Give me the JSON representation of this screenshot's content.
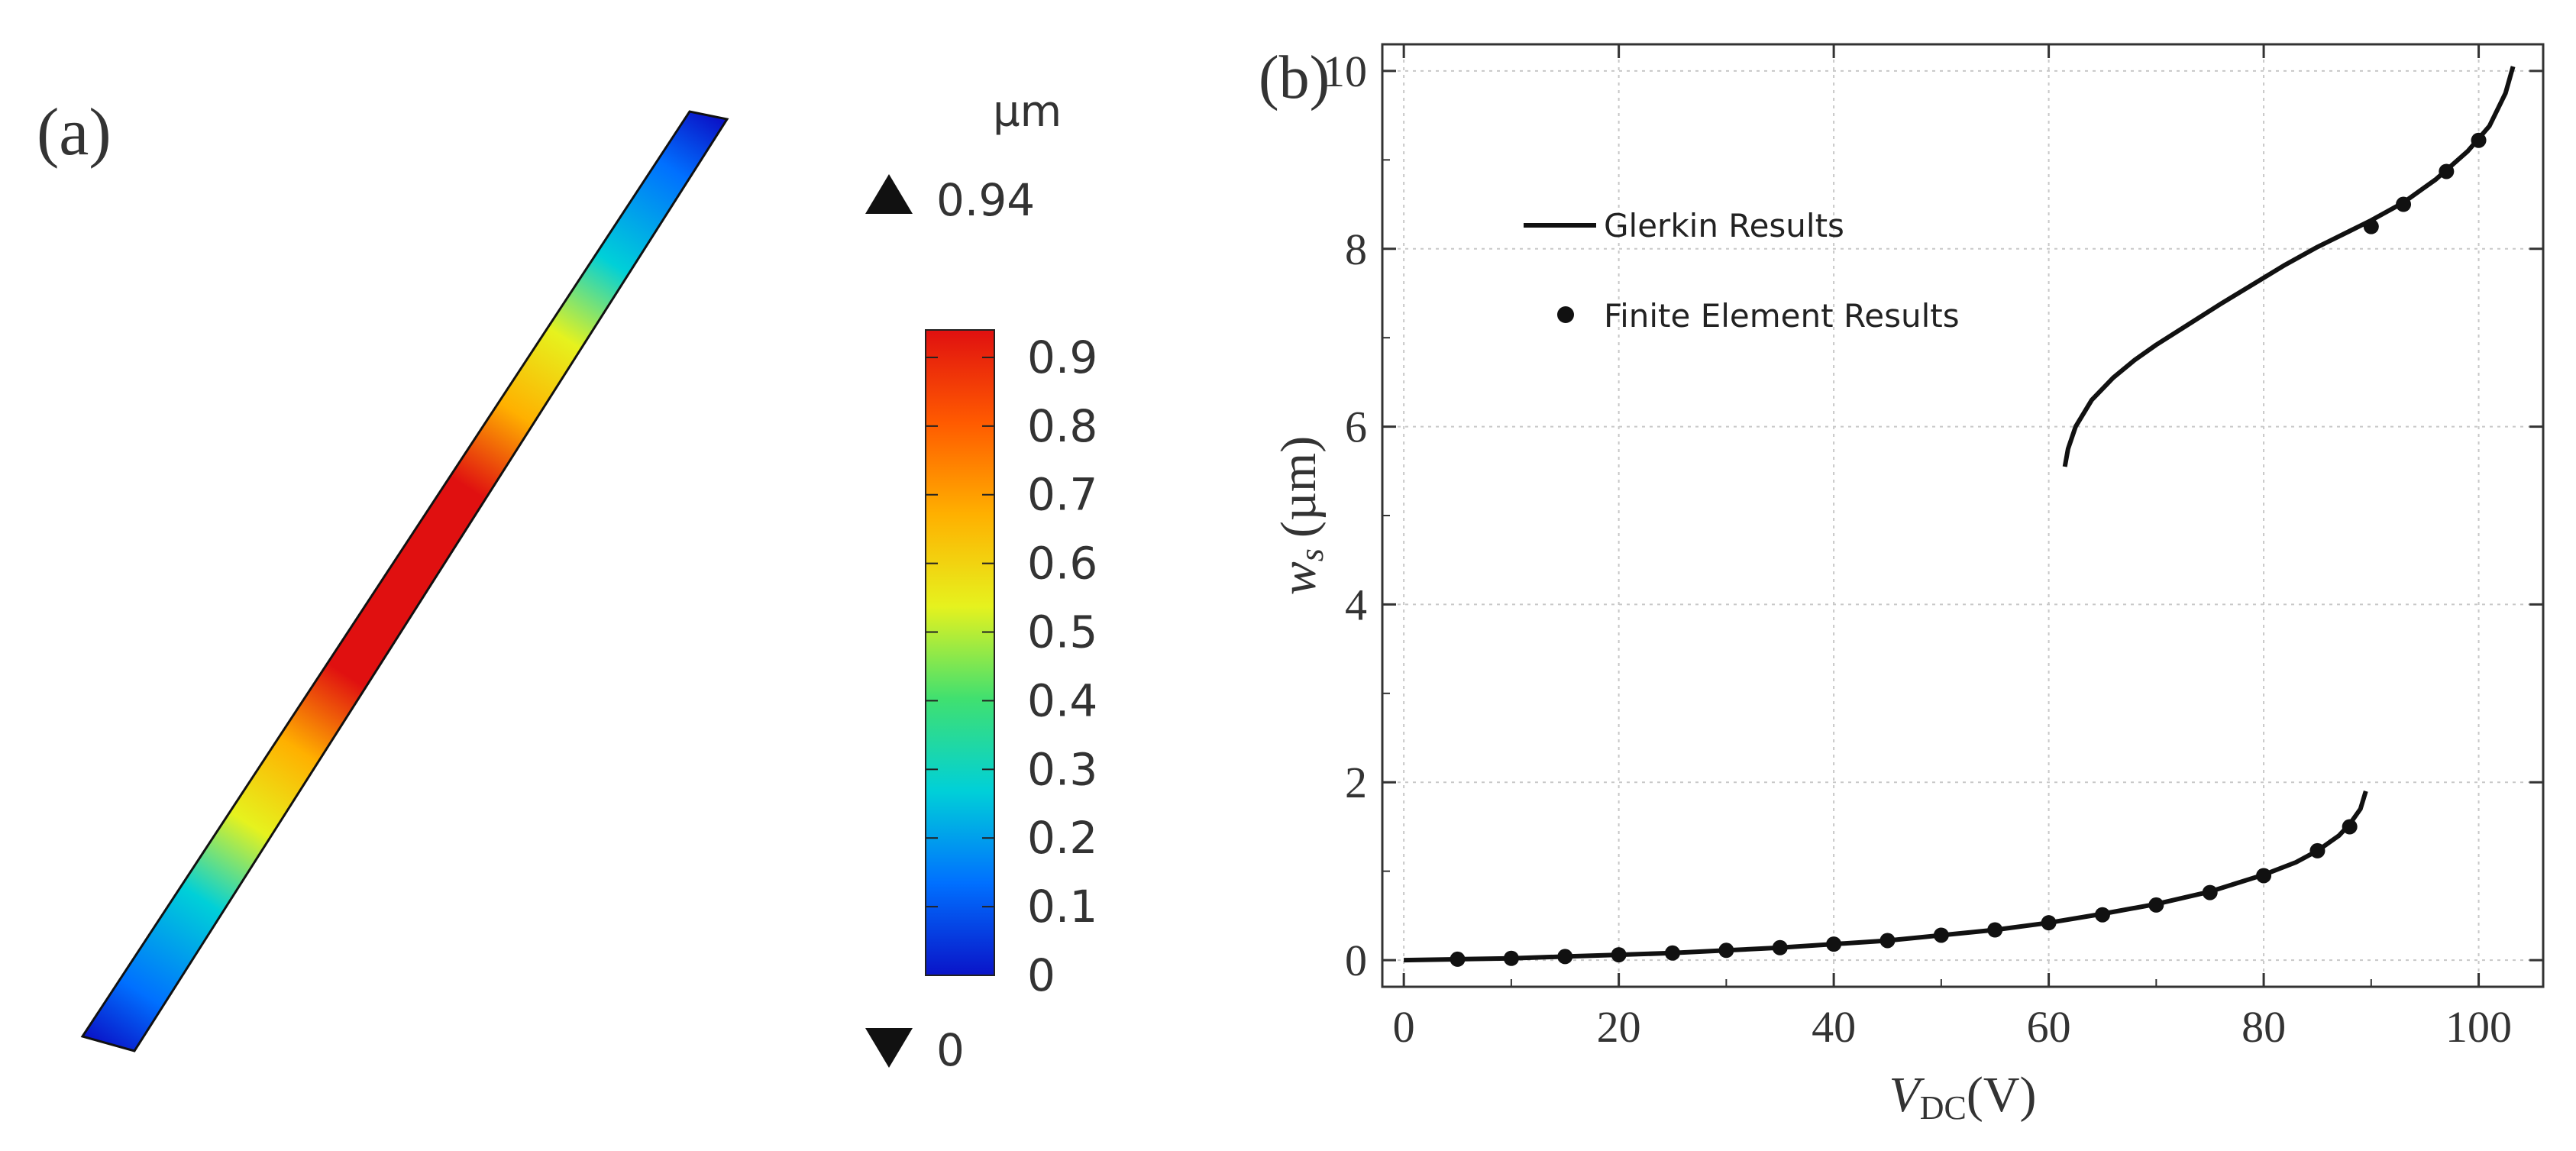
{
  "panel_a": {
    "label": "(a)",
    "unit": "µm",
    "max_label": "0.94",
    "min_label": "0",
    "colorbar_ticks": [
      "0.9",
      "0.8",
      "0.7",
      "0.6",
      "0.5",
      "0.4",
      "0.3",
      "0.2",
      "0.1",
      "0"
    ],
    "colorbar_values": [
      0.9,
      0.8,
      0.7,
      0.6,
      0.5,
      0.4,
      0.3,
      0.2,
      0.1,
      0
    ],
    "colormap": [
      "#0a14c8",
      "#0070ff",
      "#00d0d8",
      "#40e070",
      "#e6f21e",
      "#ffb000",
      "#ff5a00",
      "#e01010"
    ],
    "max_marker_icon": "up-triangle-icon",
    "min_marker_icon": "down-triangle-icon"
  },
  "chart_data": {
    "type": "line",
    "panel_label": "(b)",
    "title": "",
    "xlabel": "V",
    "xlabel_sub": "DC",
    "xlabel_unit": "(V)",
    "ylabel": "w",
    "ylabel_sub": "s",
    "ylabel_unit": "(µm)",
    "xlim": [
      -2,
      106
    ],
    "ylim": [
      -0.3,
      10.3
    ],
    "xticks": [
      0,
      20,
      40,
      60,
      80,
      100
    ],
    "xtick_labels": [
      "0",
      "20",
      "40",
      "60",
      "80",
      "100"
    ],
    "yticks": [
      0,
      2,
      4,
      6,
      8,
      10
    ],
    "ytick_labels": [
      "0",
      "2",
      "4",
      "6",
      "8",
      "10"
    ],
    "grid": true,
    "legend": {
      "position": "top-left",
      "entries": [
        {
          "label": "Glerkin Results",
          "marker": "line"
        },
        {
          "label": "Finite Element Results",
          "marker": "dot"
        }
      ]
    },
    "series": [
      {
        "name": "Glerkin Results (lower branch)",
        "style": "line",
        "x": [
          0,
          5,
          10,
          15,
          20,
          25,
          30,
          35,
          40,
          45,
          50,
          55,
          60,
          65,
          70,
          75,
          80,
          83,
          85,
          87,
          88,
          89,
          89.5
        ],
        "y": [
          0,
          0.01,
          0.02,
          0.04,
          0.06,
          0.08,
          0.11,
          0.14,
          0.18,
          0.22,
          0.28,
          0.34,
          0.42,
          0.52,
          0.63,
          0.77,
          0.96,
          1.1,
          1.23,
          1.4,
          1.53,
          1.7,
          1.9
        ]
      },
      {
        "name": "Glerkin Results (upper branch)",
        "style": "line",
        "x": [
          61.5,
          61.8,
          62.5,
          64,
          66,
          68,
          70,
          73,
          76,
          79,
          82,
          85,
          88,
          90,
          93,
          96,
          99,
          101,
          102.5,
          103.2
        ],
        "y": [
          5.55,
          5.75,
          6.0,
          6.3,
          6.55,
          6.75,
          6.92,
          7.15,
          7.38,
          7.6,
          7.82,
          8.02,
          8.2,
          8.32,
          8.52,
          8.78,
          9.1,
          9.38,
          9.75,
          10.05
        ]
      },
      {
        "name": "Finite Element Results",
        "style": "dot",
        "x": [
          5,
          10,
          15,
          20,
          25,
          30,
          35,
          40,
          45,
          50,
          55,
          60,
          65,
          70,
          75,
          80,
          85,
          88,
          90,
          93,
          97,
          100
        ],
        "y": [
          0.01,
          0.02,
          0.04,
          0.06,
          0.08,
          0.11,
          0.14,
          0.18,
          0.22,
          0.28,
          0.34,
          0.42,
          0.51,
          0.62,
          0.76,
          0.95,
          1.23,
          1.5,
          8.25,
          8.5,
          8.87,
          9.22
        ]
      }
    ]
  }
}
